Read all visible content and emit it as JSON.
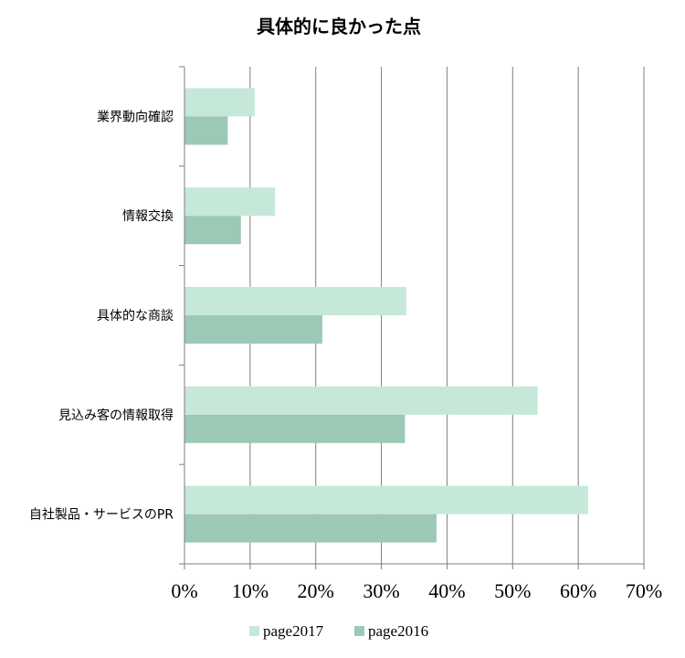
{
  "chart_data": {
    "type": "bar",
    "orientation": "horizontal",
    "title": "具体的に良かった点",
    "categories": [
      "業界動向確認",
      "情報交換",
      "具体的な商談",
      "見込み客の情報取得",
      "自社製品・サービスのPR"
    ],
    "series": [
      {
        "name": "page2017",
        "color": "#c6e8d9",
        "values": [
          10.7,
          13.8,
          33.8,
          53.8,
          61.5
        ]
      },
      {
        "name": "page2016",
        "color": "#9cc9b6",
        "values": [
          6.6,
          8.6,
          21.0,
          33.6,
          38.4
        ]
      }
    ],
    "xlim": [
      0,
      70
    ],
    "xticks": [
      0,
      10,
      20,
      30,
      40,
      50,
      60,
      70
    ],
    "tick_format": "%",
    "grid": true,
    "legend": "bottom"
  }
}
